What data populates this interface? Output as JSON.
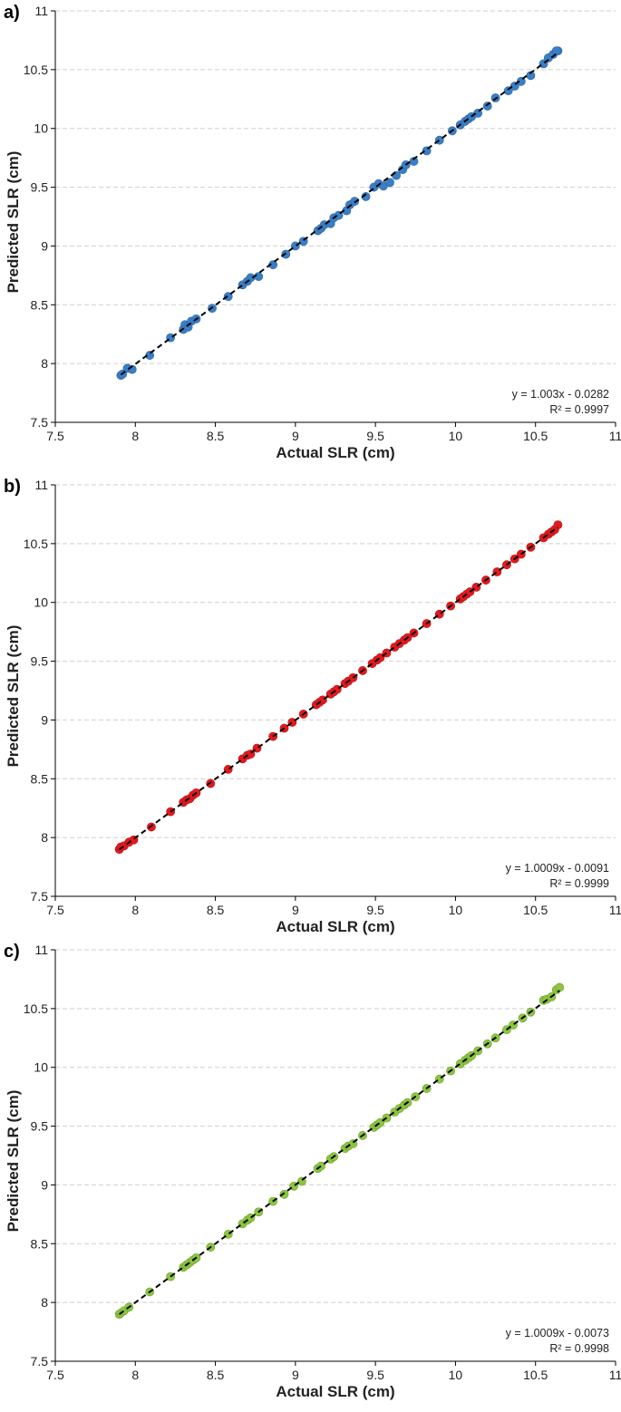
{
  "chart_data": [
    {
      "type": "scatter",
      "panel_label": "a)",
      "xlabel": "Actual SLR (cm)",
      "ylabel": "Predicted SLR (cm)",
      "xlim": [
        7.5,
        11
      ],
      "ylim": [
        7.5,
        11
      ],
      "xticks": [
        "7.5",
        "8",
        "8.5",
        "9",
        "9.5",
        "10",
        "10.5",
        "11"
      ],
      "yticks": [
        "7.5",
        "8",
        "8.5",
        "9",
        "9.5",
        "10",
        "10.5",
        "11"
      ],
      "grid": "horizontal dashed",
      "marker_color": "#3a7fc6",
      "trendline": {
        "slope": 1.003,
        "intercept": -0.0282,
        "style": "black dashed"
      },
      "equation": "y = 1.003x - 0.0282",
      "r2": "R² = 0.9997",
      "points": [
        [
          7.91,
          7.9
        ],
        [
          7.92,
          7.91
        ],
        [
          7.95,
          7.96
        ],
        [
          7.98,
          7.95
        ],
        [
          8.09,
          8.07
        ],
        [
          8.22,
          8.22
        ],
        [
          8.3,
          8.29
        ],
        [
          8.31,
          8.33
        ],
        [
          8.33,
          8.31
        ],
        [
          8.35,
          8.36
        ],
        [
          8.38,
          8.38
        ],
        [
          8.48,
          8.47
        ],
        [
          8.58,
          8.57
        ],
        [
          8.67,
          8.67
        ],
        [
          8.7,
          8.7
        ],
        [
          8.72,
          8.73
        ],
        [
          8.77,
          8.74
        ],
        [
          8.86,
          8.84
        ],
        [
          8.94,
          8.93
        ],
        [
          9.0,
          9.0
        ],
        [
          9.05,
          9.04
        ],
        [
          9.14,
          9.13
        ],
        [
          9.16,
          9.15
        ],
        [
          9.18,
          9.18
        ],
        [
          9.22,
          9.19
        ],
        [
          9.24,
          9.24
        ],
        [
          9.27,
          9.26
        ],
        [
          9.32,
          9.3
        ],
        [
          9.34,
          9.35
        ],
        [
          9.37,
          9.38
        ],
        [
          9.44,
          9.42
        ],
        [
          9.49,
          9.5
        ],
        [
          9.52,
          9.53
        ],
        [
          9.55,
          9.51
        ],
        [
          9.59,
          9.54
        ],
        [
          9.63,
          9.6
        ],
        [
          9.67,
          9.65
        ],
        [
          9.69,
          9.69
        ],
        [
          9.74,
          9.72
        ],
        [
          9.82,
          9.81
        ],
        [
          9.9,
          9.9
        ],
        [
          9.98,
          9.98
        ],
        [
          10.03,
          10.03
        ],
        [
          10.06,
          10.06
        ],
        [
          10.08,
          10.08
        ],
        [
          10.1,
          10.1
        ],
        [
          10.14,
          10.13
        ],
        [
          10.2,
          10.19
        ],
        [
          10.25,
          10.26
        ],
        [
          10.33,
          10.32
        ],
        [
          10.37,
          10.36
        ],
        [
          10.41,
          10.4
        ],
        [
          10.47,
          10.45
        ],
        [
          10.55,
          10.55
        ],
        [
          10.58,
          10.6
        ],
        [
          10.61,
          10.63
        ],
        [
          10.64,
          10.66
        ],
        [
          10.63,
          10.66
        ]
      ]
    },
    {
      "type": "scatter",
      "panel_label": "b)",
      "xlabel": "Actual SLR (cm)",
      "ylabel": "Predicted SLR (cm)",
      "xlim": [
        7.5,
        11
      ],
      "ylim": [
        7.5,
        11
      ],
      "xticks": [
        "7.5",
        "8",
        "8.5",
        "9",
        "9.5",
        "10",
        "10.5",
        "11"
      ],
      "yticks": [
        "7.5",
        "8",
        "8.5",
        "9",
        "9.5",
        "10",
        "10.5",
        "11"
      ],
      "grid": "horizontal dashed",
      "marker_color": "#e31a1c",
      "trendline": {
        "slope": 1.0009,
        "intercept": -0.0091,
        "style": "black dashed"
      },
      "equation": "y = 1.0009x - 0.0091",
      "r2": "R² = 0.9999",
      "points": [
        [
          7.9,
          7.9
        ],
        [
          7.91,
          7.92
        ],
        [
          7.93,
          7.93
        ],
        [
          7.96,
          7.96
        ],
        [
          7.99,
          7.98
        ],
        [
          8.1,
          8.09
        ],
        [
          8.22,
          8.22
        ],
        [
          8.3,
          8.3
        ],
        [
          8.32,
          8.32
        ],
        [
          8.34,
          8.33
        ],
        [
          8.36,
          8.36
        ],
        [
          8.38,
          8.38
        ],
        [
          8.47,
          8.46
        ],
        [
          8.58,
          8.58
        ],
        [
          8.67,
          8.67
        ],
        [
          8.7,
          8.7
        ],
        [
          8.72,
          8.71
        ],
        [
          8.76,
          8.76
        ],
        [
          8.86,
          8.86
        ],
        [
          8.93,
          8.93
        ],
        [
          8.98,
          8.98
        ],
        [
          9.05,
          9.05
        ],
        [
          9.13,
          9.13
        ],
        [
          9.15,
          9.15
        ],
        [
          9.17,
          9.17
        ],
        [
          9.22,
          9.22
        ],
        [
          9.24,
          9.24
        ],
        [
          9.26,
          9.26
        ],
        [
          9.31,
          9.31
        ],
        [
          9.33,
          9.33
        ],
        [
          9.36,
          9.36
        ],
        [
          9.42,
          9.42
        ],
        [
          9.48,
          9.48
        ],
        [
          9.51,
          9.51
        ],
        [
          9.53,
          9.53
        ],
        [
          9.57,
          9.57
        ],
        [
          9.62,
          9.62
        ],
        [
          9.65,
          9.65
        ],
        [
          9.68,
          9.68
        ],
        [
          9.7,
          9.7
        ],
        [
          9.74,
          9.74
        ],
        [
          9.82,
          9.82
        ],
        [
          9.9,
          9.9
        ],
        [
          9.97,
          9.97
        ],
        [
          10.03,
          10.03
        ],
        [
          10.05,
          10.05
        ],
        [
          10.07,
          10.07
        ],
        [
          10.09,
          10.09
        ],
        [
          10.13,
          10.13
        ],
        [
          10.19,
          10.19
        ],
        [
          10.26,
          10.26
        ],
        [
          10.32,
          10.32
        ],
        [
          10.37,
          10.37
        ],
        [
          10.41,
          10.41
        ],
        [
          10.47,
          10.47
        ],
        [
          10.55,
          10.55
        ],
        [
          10.58,
          10.58
        ],
        [
          10.6,
          10.6
        ],
        [
          10.62,
          10.62
        ],
        [
          10.64,
          10.66
        ]
      ]
    },
    {
      "type": "scatter",
      "panel_label": "c)",
      "xlabel": "Actual SLR (cm)",
      "ylabel": "Predicted SLR (cm)",
      "xlim": [
        7.5,
        11
      ],
      "ylim": [
        7.5,
        11
      ],
      "xticks": [
        "7.5",
        "8",
        "8.5",
        "9",
        "9.5",
        "10",
        "10.5",
        "11"
      ],
      "yticks": [
        "7.5",
        "8",
        "8.5",
        "9",
        "9.5",
        "10",
        "10.5",
        "11"
      ],
      "grid": "horizontal dashed",
      "marker_color": "#8cc63f",
      "trendline": {
        "slope": 1.0009,
        "intercept": -0.0073,
        "style": "black dashed"
      },
      "equation": "y = 1.0009x - 0.0073",
      "r2": "R² = 0.9998",
      "points": [
        [
          7.9,
          7.9
        ],
        [
          7.91,
          7.91
        ],
        [
          7.93,
          7.93
        ],
        [
          7.96,
          7.96
        ],
        [
          8.09,
          8.09
        ],
        [
          8.22,
          8.22
        ],
        [
          8.3,
          8.3
        ],
        [
          8.32,
          8.32
        ],
        [
          8.34,
          8.34
        ],
        [
          8.36,
          8.36
        ],
        [
          8.38,
          8.38
        ],
        [
          8.47,
          8.47
        ],
        [
          8.58,
          8.58
        ],
        [
          8.67,
          8.67
        ],
        [
          8.7,
          8.7
        ],
        [
          8.72,
          8.72
        ],
        [
          8.77,
          8.77
        ],
        [
          8.86,
          8.86
        ],
        [
          8.93,
          8.92
        ],
        [
          8.99,
          8.99
        ],
        [
          9.04,
          9.03
        ],
        [
          9.14,
          9.14
        ],
        [
          9.16,
          9.16
        ],
        [
          9.22,
          9.22
        ],
        [
          9.24,
          9.24
        ],
        [
          9.31,
          9.31
        ],
        [
          9.33,
          9.33
        ],
        [
          9.36,
          9.35
        ],
        [
          9.42,
          9.42
        ],
        [
          9.49,
          9.49
        ],
        [
          9.51,
          9.51
        ],
        [
          9.53,
          9.53
        ],
        [
          9.57,
          9.57
        ],
        [
          9.62,
          9.62
        ],
        [
          9.65,
          9.65
        ],
        [
          9.68,
          9.68
        ],
        [
          9.7,
          9.7
        ],
        [
          9.75,
          9.75
        ],
        [
          9.82,
          9.82
        ],
        [
          9.9,
          9.9
        ],
        [
          9.97,
          9.97
        ],
        [
          10.03,
          10.03
        ],
        [
          10.06,
          10.06
        ],
        [
          10.08,
          10.08
        ],
        [
          10.1,
          10.1
        ],
        [
          10.14,
          10.14
        ],
        [
          10.2,
          10.2
        ],
        [
          10.25,
          10.25
        ],
        [
          10.32,
          10.32
        ],
        [
          10.36,
          10.36
        ],
        [
          10.42,
          10.42
        ],
        [
          10.47,
          10.47
        ],
        [
          10.55,
          10.57
        ],
        [
          10.57,
          10.58
        ],
        [
          10.6,
          10.6
        ],
        [
          10.63,
          10.66
        ],
        [
          10.65,
          10.68
        ]
      ]
    }
  ]
}
